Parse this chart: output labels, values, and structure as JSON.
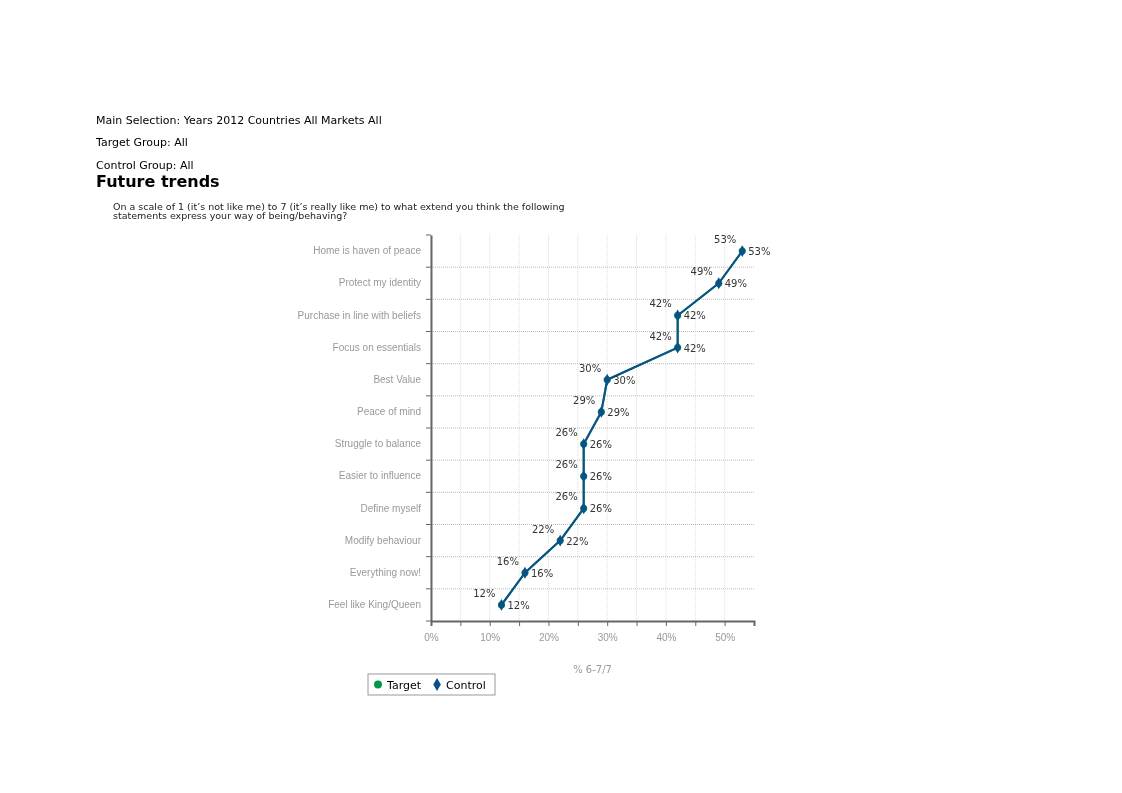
{
  "chart_data": {
    "type": "line",
    "orientation": "horizontal",
    "title": "Future trends",
    "subtitle": "On a scale of 1 (it’s not like me) to 7 (it’s really like me) to what extend you think the following statements express your way of being/behaving?",
    "annotations": [
      "Main Selection: Years 2012 Countries All Markets All",
      "Target Group: All",
      "Control Group: All"
    ],
    "xlabel": "% 6-7/7",
    "categories": [
      "Home is haven of peace",
      "Protect my identity",
      "Purchase in line with beliefs",
      "Focus on essentials",
      "Best Value",
      "Peace of mind",
      "Struggle to balance",
      "Easier to influence",
      "Define myself",
      "Modify behaviour",
      "Everything now!",
      "Feel like King/Queen"
    ],
    "series": [
      {
        "name": "Target",
        "color": "#009a44",
        "marker": "circle",
        "values": [
          53,
          49,
          42,
          42,
          30,
          29,
          26,
          26,
          26,
          22,
          16,
          12
        ],
        "value_labels": [
          "53%",
          "49%",
          "42%",
          "42%",
          "30%",
          "29%",
          "26%",
          "26%",
          "26%",
          "22%",
          "16%",
          "12%"
        ]
      },
      {
        "name": "Control",
        "color": "#0d4f8b",
        "marker": "diamond",
        "values": [
          53,
          49,
          42,
          42,
          30,
          29,
          26,
          26,
          26,
          22,
          16,
          12
        ],
        "value_labels": [
          "53%",
          "49%",
          "42%",
          "42%",
          "30%",
          "29%",
          "26%",
          "26%",
          "26%",
          "22%",
          "16%",
          "12%"
        ]
      }
    ],
    "xlim": [
      0,
      55
    ],
    "xticks": [
      {
        "value": 0,
        "label": "0%"
      },
      {
        "value": 5,
        "label": null
      },
      {
        "value": 10,
        "label": "10%"
      },
      {
        "value": 15,
        "label": null
      },
      {
        "value": 20,
        "label": "20%"
      },
      {
        "value": 25,
        "label": null
      },
      {
        "value": 30,
        "label": "30%"
      },
      {
        "value": 35,
        "label": null
      },
      {
        "value": 40,
        "label": "40%"
      },
      {
        "value": 45,
        "label": null
      },
      {
        "value": 50,
        "label": "50%"
      }
    ],
    "grid": true,
    "legend": "bottom",
    "line_style": "solid"
  }
}
